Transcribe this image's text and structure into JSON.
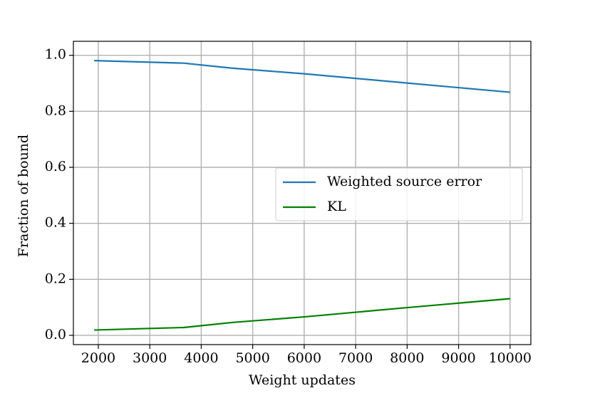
{
  "chart_data": {
    "type": "line",
    "x_label": "Weight updates",
    "y_label": "Fraction of bound",
    "x": [
      1920,
      3660,
      4600,
      6000,
      8000,
      10000
    ],
    "series": [
      {
        "name": "Weighted source error",
        "color": "#1f77b4",
        "values": [
          0.981,
          0.972,
          0.954,
          0.934,
          0.901,
          0.868
        ]
      },
      {
        "name": "KL",
        "color": "#008000",
        "values": [
          0.019,
          0.028,
          0.046,
          0.066,
          0.099,
          0.131
        ]
      }
    ],
    "xlim": [
      1516,
      10404
    ],
    "xticks": [
      2000,
      3000,
      4000,
      5000,
      6000,
      7000,
      8000,
      9000,
      10000
    ],
    "ylim": [
      -0.033,
      1.05
    ],
    "yticks": [
      {
        "value": 0,
        "label": "0.0"
      },
      0.2,
      0.4,
      0.6,
      0.8,
      {
        "value": 1,
        "label": "1.0"
      }
    ],
    "grid": true,
    "legend": "center right"
  }
}
